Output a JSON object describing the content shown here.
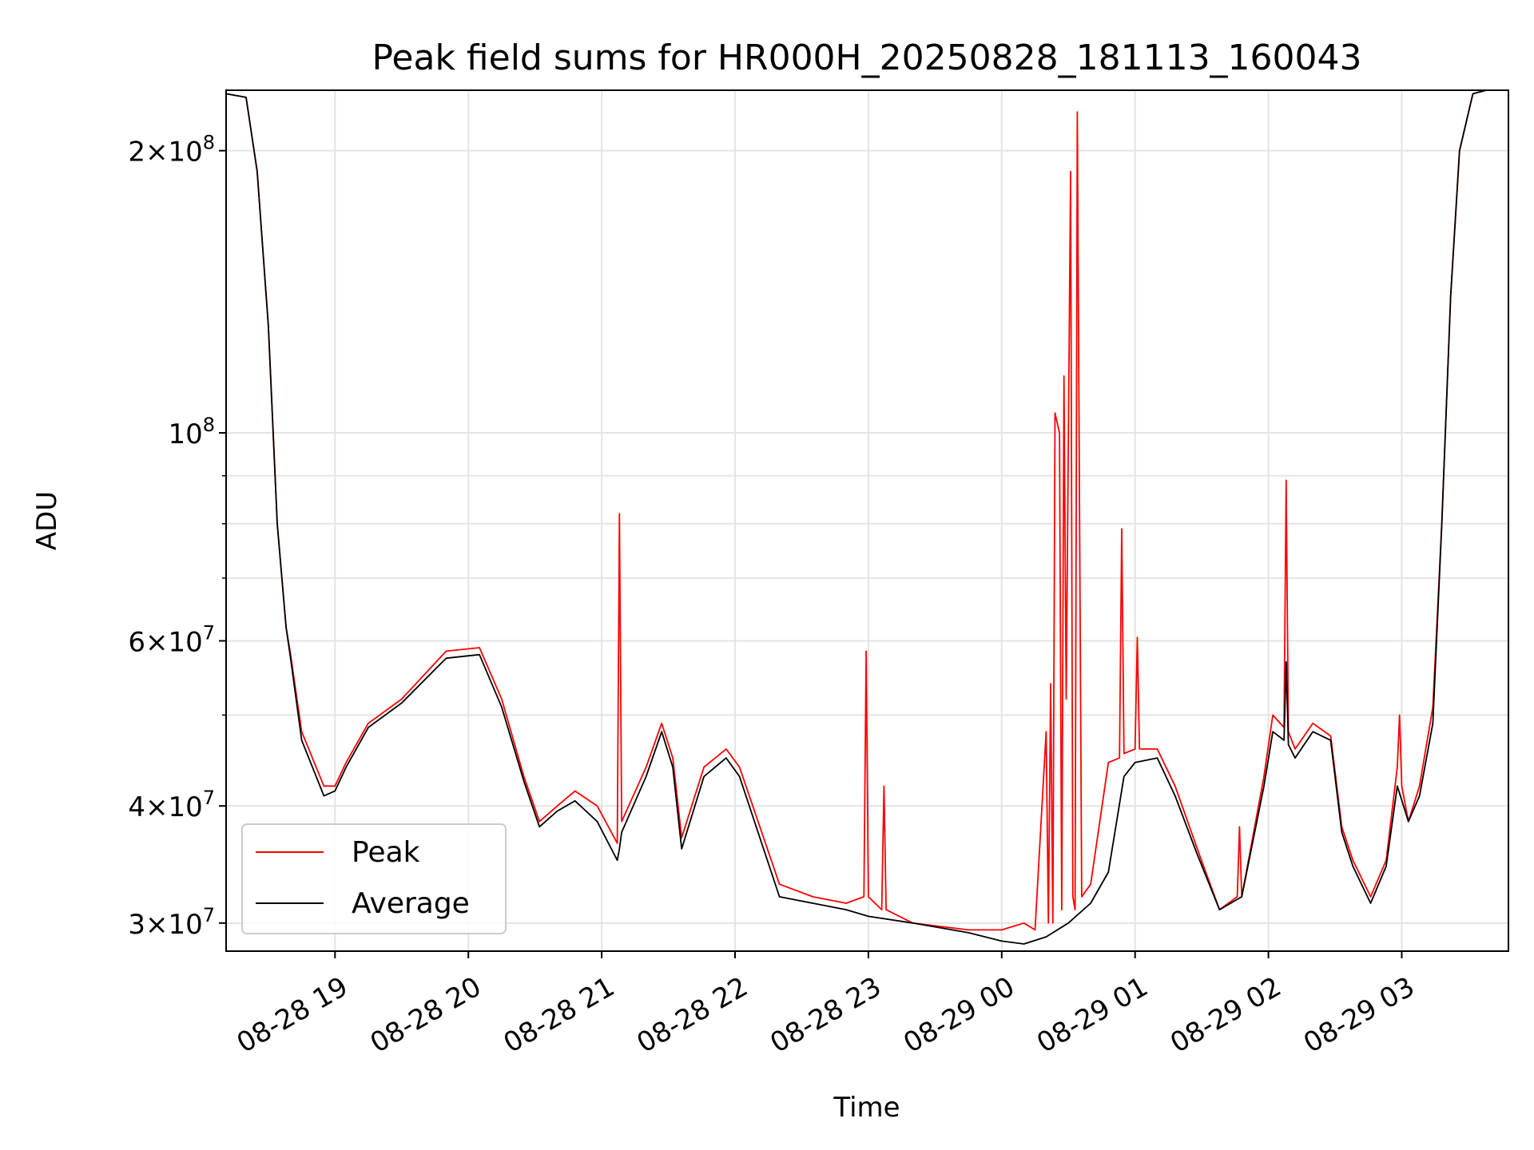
{
  "chart_data": {
    "type": "line",
    "title": "Peak field sums for HR000H_20250828_181113_160043",
    "xlabel": "Time",
    "ylabel": "ADU",
    "yscale": "log",
    "grid": true,
    "legend_position": "lower-left",
    "x_range": [
      "2025-08-28 18:11",
      "2025-08-29 03:48"
    ],
    "ylim": [
      28000000,
      232000000
    ],
    "x_tick_labels": [
      "08-28 19",
      "08-28 20",
      "08-28 21",
      "08-28 22",
      "08-28 23",
      "08-29 00",
      "08-29 01",
      "08-29 02",
      "08-29 03"
    ],
    "x_ticks": [
      "2025-08-28 19:00",
      "2025-08-28 20:00",
      "2025-08-28 21:00",
      "2025-08-28 22:00",
      "2025-08-28 23:00",
      "2025-08-29 00:00",
      "2025-08-29 01:00",
      "2025-08-29 02:00",
      "2025-08-29 03:00"
    ],
    "y_major_ticks": [
      {
        "value": 30000000,
        "mantissa": "3",
        "exponent": "7"
      },
      {
        "value": 40000000,
        "mantissa": "4",
        "exponent": "7"
      },
      {
        "value": 60000000,
        "mantissa": "6",
        "exponent": "7"
      },
      {
        "value": 100000000,
        "mantissa": "",
        "exponent": "8"
      },
      {
        "value": 200000000,
        "mantissa": "2",
        "exponent": "8"
      }
    ],
    "y_minor_ticks": [
      50000000,
      70000000,
      80000000,
      90000000
    ],
    "series": [
      {
        "name": "Peak",
        "color": "#ff0000",
        "x": [
          "2025-08-28 18:11",
          "2025-08-28 18:20",
          "2025-08-28 18:25",
          "2025-08-28 18:30",
          "2025-08-28 18:34",
          "2025-08-28 18:38",
          "2025-08-28 18:40",
          "2025-08-28 18:45",
          "2025-08-28 18:55",
          "2025-08-28 19:00",
          "2025-08-28 19:05",
          "2025-08-28 19:15",
          "2025-08-28 19:30",
          "2025-08-28 19:50",
          "2025-08-28 20:05",
          "2025-08-28 20:15",
          "2025-08-28 20:25",
          "2025-08-28 20:32",
          "2025-08-28 20:40",
          "2025-08-28 20:48",
          "2025-08-28 20:58",
          "2025-08-28 21:07",
          "2025-08-28 21:08",
          "2025-08-28 21:09",
          "2025-08-28 21:20",
          "2025-08-28 21:27",
          "2025-08-28 21:32",
          "2025-08-28 21:36",
          "2025-08-28 21:46",
          "2025-08-28 21:56",
          "2025-08-28 22:02",
          "2025-08-28 22:20",
          "2025-08-28 22:35",
          "2025-08-28 22:50",
          "2025-08-28 22:58",
          "2025-08-28 22:59",
          "2025-08-28 23:00",
          "2025-08-28 23:06",
          "2025-08-28 23:07",
          "2025-08-28 23:08",
          "2025-08-28 23:20",
          "2025-08-28 23:45",
          "2025-08-29 00:00",
          "2025-08-29 00:10",
          "2025-08-29 00:15",
          "2025-08-29 00:20",
          "2025-08-29 00:21",
          "2025-08-29 00:22",
          "2025-08-29 00:23",
          "2025-08-29 00:24",
          "2025-08-29 00:26",
          "2025-08-29 00:27",
          "2025-08-29 00:28",
          "2025-08-29 00:29",
          "2025-08-29 00:31",
          "2025-08-29 00:32",
          "2025-08-29 00:33",
          "2025-08-29 00:34",
          "2025-08-29 00:36",
          "2025-08-29 00:40",
          "2025-08-29 00:48",
          "2025-08-29 00:53",
          "2025-08-29 00:54",
          "2025-08-29 00:55",
          "2025-08-29 01:00",
          "2025-08-29 01:01",
          "2025-08-29 01:02",
          "2025-08-29 01:10",
          "2025-08-29 01:18",
          "2025-08-29 01:28",
          "2025-08-29 01:38",
          "2025-08-29 01:46",
          "2025-08-29 01:47",
          "2025-08-29 01:48",
          "2025-08-29 01:58",
          "2025-08-29 02:02",
          "2025-08-29 02:07",
          "2025-08-29 02:08",
          "2025-08-29 02:09",
          "2025-08-29 02:12",
          "2025-08-29 02:20",
          "2025-08-29 02:28",
          "2025-08-29 02:33",
          "2025-08-29 02:38",
          "2025-08-29 02:46",
          "2025-08-29 02:53",
          "2025-08-29 02:58",
          "2025-08-29 02:59",
          "2025-08-29 03:00",
          "2025-08-29 03:03",
          "2025-08-29 03:08",
          "2025-08-29 03:14",
          "2025-08-29 03:18",
          "2025-08-29 03:22",
          "2025-08-29 03:26",
          "2025-08-29 03:32",
          "2025-08-29 03:38",
          "2025-08-29 03:43",
          "2025-08-29 03:48"
        ],
        "values": [
          230000000,
          228000000,
          190000000,
          130000000,
          80000000,
          62000000,
          58000000,
          48000000,
          42000000,
          42000000,
          44500000,
          49000000,
          52000000,
          58500000,
          59000000,
          52000000,
          43000000,
          38500000,
          40000000,
          41500000,
          40000000,
          36500000,
          82000000,
          38500000,
          44000000,
          49000000,
          45000000,
          37000000,
          44000000,
          46000000,
          44000000,
          33000000,
          32000000,
          31500000,
          32000000,
          58500000,
          32000000,
          31000000,
          42000000,
          31000000,
          30000000,
          29500000,
          29500000,
          30000000,
          29500000,
          48000000,
          30000000,
          54000000,
          30000000,
          105000000,
          100000000,
          31000000,
          115000000,
          52000000,
          190000000,
          32000000,
          31000000,
          220000000,
          32000000,
          33000000,
          44500000,
          45000000,
          79000000,
          45500000,
          46000000,
          60500000,
          46000000,
          46000000,
          42000000,
          36000000,
          31000000,
          32000000,
          38000000,
          32000000,
          43000000,
          50000000,
          48500000,
          89000000,
          48000000,
          46000000,
          49000000,
          47500000,
          38000000,
          35000000,
          32000000,
          35000000,
          44000000,
          50000000,
          42000000,
          38500000,
          42000000,
          51000000,
          80000000,
          140000000,
          200000000,
          230000000,
          232000000,
          232000000,
          232000000
        ]
      },
      {
        "name": "Average",
        "color": "#000000",
        "x": [
          "2025-08-28 18:11",
          "2025-08-28 18:20",
          "2025-08-28 18:25",
          "2025-08-28 18:30",
          "2025-08-28 18:34",
          "2025-08-28 18:38",
          "2025-08-28 18:40",
          "2025-08-28 18:45",
          "2025-08-28 18:55",
          "2025-08-28 19:00",
          "2025-08-28 19:05",
          "2025-08-28 19:15",
          "2025-08-28 19:30",
          "2025-08-28 19:50",
          "2025-08-28 20:05",
          "2025-08-28 20:15",
          "2025-08-28 20:25",
          "2025-08-28 20:32",
          "2025-08-28 20:40",
          "2025-08-28 20:48",
          "2025-08-28 20:58",
          "2025-08-28 21:07",
          "2025-08-28 21:08",
          "2025-08-28 21:09",
          "2025-08-28 21:20",
          "2025-08-28 21:27",
          "2025-08-28 21:32",
          "2025-08-28 21:36",
          "2025-08-28 21:46",
          "2025-08-28 21:56",
          "2025-08-28 22:02",
          "2025-08-28 22:20",
          "2025-08-28 22:35",
          "2025-08-28 22:50",
          "2025-08-28 23:00",
          "2025-08-28 23:20",
          "2025-08-28 23:45",
          "2025-08-29 00:00",
          "2025-08-29 00:10",
          "2025-08-29 00:20",
          "2025-08-29 00:30",
          "2025-08-29 00:40",
          "2025-08-29 00:48",
          "2025-08-29 00:55",
          "2025-08-29 01:00",
          "2025-08-29 01:10",
          "2025-08-29 01:18",
          "2025-08-29 01:28",
          "2025-08-29 01:38",
          "2025-08-29 01:48",
          "2025-08-29 01:58",
          "2025-08-29 02:02",
          "2025-08-29 02:07",
          "2025-08-29 02:08",
          "2025-08-29 02:09",
          "2025-08-29 02:12",
          "2025-08-29 02:20",
          "2025-08-29 02:28",
          "2025-08-29 02:33",
          "2025-08-29 02:38",
          "2025-08-29 02:46",
          "2025-08-29 02:53",
          "2025-08-29 02:58",
          "2025-08-29 03:03",
          "2025-08-29 03:08",
          "2025-08-29 03:14",
          "2025-08-29 03:18",
          "2025-08-29 03:22",
          "2025-08-29 03:26",
          "2025-08-29 03:32",
          "2025-08-29 03:38",
          "2025-08-29 03:43",
          "2025-08-29 03:48"
        ],
        "values": [
          230000000,
          228000000,
          190000000,
          130000000,
          80000000,
          62000000,
          57500000,
          47000000,
          41000000,
          41500000,
          44000000,
          48500000,
          51500000,
          57500000,
          58000000,
          51000000,
          42500000,
          38000000,
          39500000,
          40500000,
          38500000,
          35000000,
          36000000,
          37500000,
          43000000,
          48000000,
          44000000,
          36000000,
          43000000,
          45000000,
          43000000,
          32000000,
          31500000,
          31000000,
          30500000,
          30000000,
          29300000,
          28700000,
          28500000,
          29000000,
          30000000,
          31500000,
          34000000,
          43000000,
          44500000,
          45000000,
          41000000,
          35500000,
          31000000,
          32000000,
          42000000,
          48000000,
          47000000,
          57000000,
          46500000,
          45000000,
          48000000,
          47000000,
          37500000,
          34500000,
          31500000,
          34500000,
          42000000,
          38500000,
          41000000,
          49000000,
          80000000,
          140000000,
          200000000,
          230000000,
          232000000,
          232000000,
          232000000
        ]
      }
    ]
  }
}
